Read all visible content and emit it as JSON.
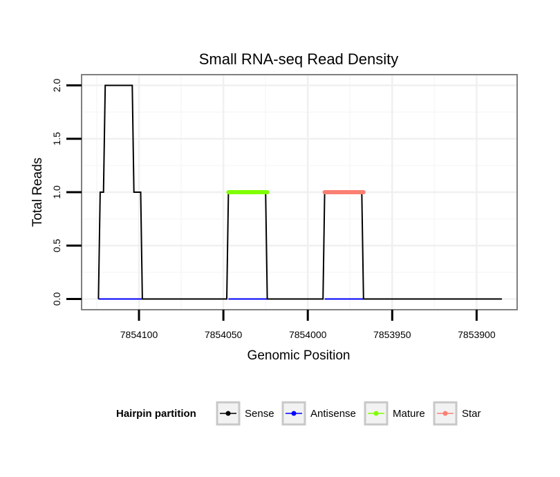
{
  "chart_data": {
    "type": "line",
    "title": "Small RNA-seq Read Density",
    "xlabel": "Genomic Position",
    "ylabel": "Total Reads",
    "x_reversed": true,
    "xlim": [
      7854134,
      7853876
    ],
    "ylim": [
      -0.1,
      2.1
    ],
    "x_ticks": [
      7854100,
      7854050,
      7854000,
      7853950,
      7853900
    ],
    "x_tick_labels": [
      "7854100",
      "7854050",
      "7854000",
      "7853950",
      "7853900"
    ],
    "y_ticks": [
      0,
      0.5,
      1,
      1.5,
      2
    ],
    "y_tick_labels": [
      "0.0",
      "0.5",
      "1.0",
      "1.5",
      "2.0"
    ],
    "grid": true,
    "legend": {
      "title": "Hairpin partition",
      "position": "bottom",
      "entries": [
        {
          "label": "Sense",
          "color": "#000000"
        },
        {
          "label": "Antisense",
          "color": "#0000ff"
        },
        {
          "label": "Mature",
          "color": "#7fff00"
        },
        {
          "label": "Star",
          "color": "#fa8072"
        }
      ]
    },
    "series": [
      {
        "name": "Sense",
        "color": "#000000",
        "x": [
          7854124,
          7854123,
          7854122,
          7854121,
          7854120,
          7854104,
          7854103,
          7854102,
          7854099,
          7854098,
          7854097,
          7854048,
          7854047,
          7854046,
          7854025,
          7854024,
          7854023,
          7853991,
          7853990,
          7853989,
          7853968,
          7853967,
          7853966,
          7853885
        ],
        "y": [
          0,
          1,
          1,
          1,
          2,
          2,
          1,
          1,
          1,
          0,
          0,
          0,
          1,
          1,
          1,
          0,
          0,
          0,
          1,
          1,
          1,
          0,
          0,
          0
        ]
      },
      {
        "name": "Antisense",
        "color": "#0000ff",
        "segments": [
          {
            "x": [
              7854124,
              7854098
            ],
            "y": [
              0,
              0
            ]
          },
          {
            "x": [
              7854047,
              7854024
            ],
            "y": [
              0,
              0
            ]
          },
          {
            "x": [
              7853990,
              7853967
            ],
            "y": [
              0,
              0
            ]
          }
        ]
      },
      {
        "name": "Mature",
        "color": "#7fff00",
        "x": [
          7854047,
          7854024
        ],
        "y": [
          1,
          1
        ]
      },
      {
        "name": "Star",
        "color": "#fa8072",
        "x": [
          7853990,
          7853967
        ],
        "y": [
          1,
          1
        ]
      }
    ]
  }
}
